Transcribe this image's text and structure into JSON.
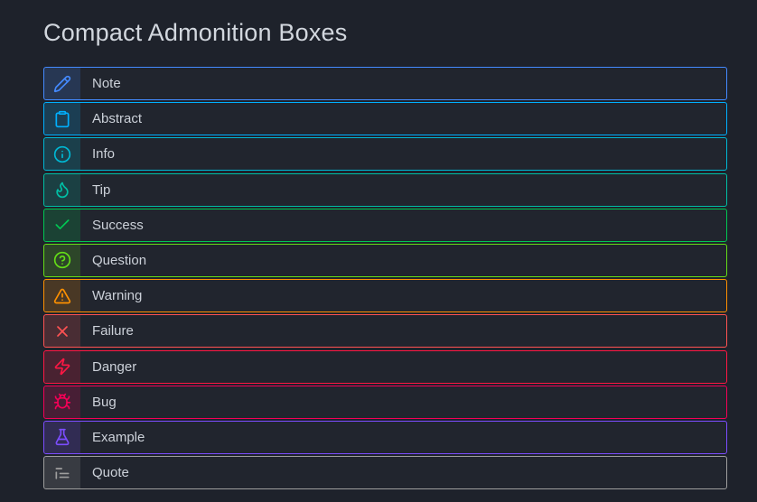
{
  "page": {
    "title": "Compact Admonition Boxes",
    "background_color": "#1e222b",
    "title_color": "#d2d7de",
    "label_color": "#ccd1d9"
  },
  "admonitions": [
    {
      "label": "Note",
      "icon": "pencil-icon",
      "color": "#448aff"
    },
    {
      "label": "Abstract",
      "icon": "clipboard-icon",
      "color": "#00b0ff"
    },
    {
      "label": "Info",
      "icon": "info-circle-icon",
      "color": "#00b8d4"
    },
    {
      "label": "Tip",
      "icon": "flame-icon",
      "color": "#00bfa5"
    },
    {
      "label": "Success",
      "icon": "check-icon",
      "color": "#00c853"
    },
    {
      "label": "Question",
      "icon": "question-circle-icon",
      "color": "#64dd17"
    },
    {
      "label": "Warning",
      "icon": "warning-triangle-icon",
      "color": "#ff9100"
    },
    {
      "label": "Failure",
      "icon": "x-icon",
      "color": "#ff5252"
    },
    {
      "label": "Danger",
      "icon": "lightning-icon",
      "color": "#ff1744"
    },
    {
      "label": "Bug",
      "icon": "bug-icon",
      "color": "#f50057"
    },
    {
      "label": "Example",
      "icon": "flask-icon",
      "color": "#7c4dff"
    },
    {
      "label": "Quote",
      "icon": "quote-icon",
      "color": "#9e9e9e"
    }
  ]
}
